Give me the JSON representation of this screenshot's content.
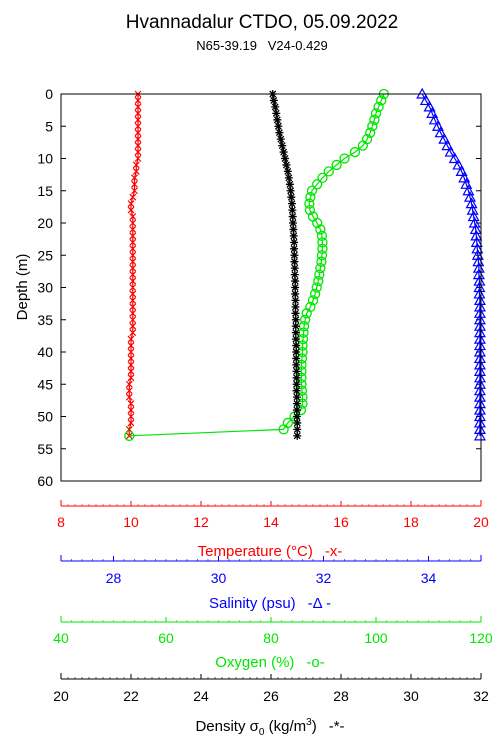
{
  "title": "Hvannadalur CTDO, 05.09.2022",
  "subtitle": "N65-39.19   V24-0.429",
  "chart_data": {
    "type": "scatter",
    "y": {
      "label": "Depth (m)",
      "ylim": [
        0,
        60
      ],
      "inverted": true,
      "ticks": [
        0,
        5,
        10,
        15,
        20,
        25,
        30,
        35,
        40,
        45,
        50,
        55,
        60
      ]
    },
    "depths": [
      0,
      1,
      2,
      3,
      4,
      5,
      6,
      7,
      8,
      9,
      10,
      11,
      12,
      13,
      14,
      15,
      16,
      17,
      18,
      19,
      20,
      21,
      22,
      23,
      24,
      25,
      26,
      27,
      28,
      29,
      30,
      31,
      32,
      33,
      34,
      35,
      36,
      37,
      38,
      39,
      40,
      41,
      42,
      43,
      44,
      45,
      46,
      47,
      48,
      49,
      50,
      51,
      52,
      53
    ],
    "axes": [
      {
        "key": "temperature",
        "label": "Temperature (°C)",
        "legend": "-x-",
        "color": "#ff0000",
        "xlim": [
          8,
          20
        ],
        "ticks": [
          8,
          10,
          12,
          14,
          16,
          18,
          20
        ],
        "tick_labels": [
          "8",
          "10",
          "12",
          "14",
          "16",
          "18",
          "20"
        ]
      },
      {
        "key": "salinity",
        "label": "Salinity (psu)",
        "legend": "-Δ -",
        "color": "#0000ff",
        "xlim": [
          27,
          35
        ],
        "ticks": [
          28,
          30,
          32,
          34
        ],
        "tick_labels": [
          "28",
          "30",
          "32",
          "34"
        ]
      },
      {
        "key": "oxygen",
        "label": "Oxygen (%)",
        "legend": "-o-",
        "color": "#00e600",
        "xlim": [
          40,
          120
        ],
        "ticks": [
          40,
          60,
          80,
          100,
          120
        ],
        "tick_labels": [
          "40",
          "60",
          "80",
          "100",
          "120"
        ]
      },
      {
        "key": "density",
        "label": "Density σ",
        "label_sub": "0",
        "label_units": " (kg/m",
        "label_sup": "3",
        "label_end": ")",
        "legend": "-*-",
        "color": "#000000",
        "xlim": [
          20,
          32
        ],
        "ticks": [
          20,
          22,
          24,
          26,
          28,
          30,
          32
        ],
        "tick_labels": [
          "20",
          "22",
          "24",
          "26",
          "28",
          "30",
          "32"
        ]
      }
    ],
    "series": [
      {
        "name": "Temperature",
        "axis": "temperature",
        "marker": "x",
        "color": "#ff0000",
        "depths": [
          0,
          1,
          2,
          3,
          4,
          5,
          6,
          7,
          8,
          9,
          10,
          11,
          12,
          13,
          14,
          15,
          16,
          17,
          18,
          19,
          20,
          21,
          22,
          23,
          24,
          25,
          26,
          27,
          28,
          29,
          30,
          31,
          32,
          33,
          34,
          35,
          36,
          37,
          38,
          39,
          40,
          41,
          42,
          43,
          44,
          45,
          46,
          47,
          48,
          49,
          50,
          51,
          52,
          53
        ],
        "values": [
          10.2,
          10.2,
          10.2,
          10.2,
          10.2,
          10.2,
          10.2,
          10.2,
          10.2,
          10.2,
          10.2,
          10.15,
          10.15,
          10.1,
          10.1,
          10.1,
          10.05,
          10.0,
          10.0,
          10.05,
          10.05,
          10.05,
          10.05,
          10.05,
          10.05,
          10.05,
          10.05,
          10.05,
          10.05,
          10.05,
          10.05,
          10.05,
          10.05,
          10.05,
          10.05,
          10.05,
          10.05,
          10.05,
          10.0,
          10.0,
          10.0,
          10.0,
          10.0,
          10.0,
          10.0,
          9.95,
          9.95,
          9.95,
          10.0,
          10.0,
          10.0,
          10.0,
          9.95,
          9.95
        ]
      },
      {
        "name": "Salinity",
        "axis": "salinity",
        "marker": "triangle",
        "color": "#0000ff",
        "depths": [
          0,
          1,
          2,
          3,
          4,
          5,
          6,
          7,
          8,
          9,
          10,
          11,
          12,
          13,
          14,
          15,
          16,
          17,
          18,
          19,
          20,
          21,
          22,
          23,
          24,
          25,
          26,
          27,
          28,
          29,
          30,
          31,
          32,
          33,
          34,
          35,
          36,
          37,
          38,
          39,
          40,
          41,
          42,
          43,
          44,
          45,
          46,
          47,
          48,
          49,
          50,
          51,
          52,
          53
        ],
        "values": [
          33.88,
          33.95,
          34.02,
          34.07,
          34.12,
          34.18,
          34.23,
          34.3,
          34.36,
          34.42,
          34.5,
          34.57,
          34.63,
          34.68,
          34.72,
          34.76,
          34.79,
          34.82,
          34.84,
          34.86,
          34.88,
          34.9,
          34.91,
          34.92,
          34.93,
          34.94,
          34.95,
          34.96,
          34.96,
          34.97,
          34.97,
          34.97,
          34.98,
          34.98,
          34.98,
          34.98,
          34.98,
          34.98,
          34.98,
          34.98,
          34.98,
          34.98,
          34.98,
          34.98,
          34.98,
          34.98,
          34.98,
          34.98,
          34.98,
          34.98,
          34.98,
          34.98,
          34.98,
          34.98
        ]
      },
      {
        "name": "Oxygen",
        "axis": "oxygen",
        "marker": "circle",
        "color": "#00e600",
        "depths": [
          0,
          1,
          2,
          3,
          4,
          5,
          6,
          7,
          8,
          9,
          10,
          11,
          12,
          13,
          14,
          15,
          16,
          17,
          18,
          19,
          20,
          21,
          22,
          23,
          24,
          25,
          26,
          27,
          28,
          29,
          30,
          31,
          32,
          33,
          34,
          35,
          36,
          37,
          38,
          39,
          40,
          41,
          42,
          43,
          44,
          45,
          46,
          47,
          48,
          49,
          50,
          51,
          52,
          53
        ],
        "values": [
          101.5,
          101.0,
          100.5,
          100.0,
          99.7,
          99.3,
          98.9,
          98.3,
          97.5,
          96.0,
          94.0,
          92.5,
          91.0,
          89.8,
          88.8,
          87.8,
          87.5,
          87.3,
          87.4,
          88.0,
          88.8,
          89.4,
          89.7,
          89.8,
          89.8,
          89.7,
          89.6,
          89.4,
          89.2,
          89.0,
          88.7,
          88.4,
          88.0,
          87.5,
          86.8,
          86.5,
          86.3,
          86.2,
          86.1,
          86.0,
          86.0,
          85.9,
          85.8,
          85.8,
          85.8,
          85.8,
          85.9,
          86.0,
          86.0,
          85.7,
          84.5,
          83.2,
          82.4,
          53.0
        ]
      },
      {
        "name": "Density",
        "axis": "density",
        "marker": "star",
        "color": "#000000",
        "depths": [
          0,
          1,
          2,
          3,
          4,
          5,
          6,
          7,
          8,
          9,
          10,
          11,
          12,
          13,
          14,
          15,
          16,
          17,
          18,
          19,
          20,
          21,
          22,
          23,
          24,
          25,
          26,
          27,
          28,
          29,
          30,
          31,
          32,
          33,
          34,
          35,
          36,
          37,
          38,
          39,
          40,
          41,
          42,
          43,
          44,
          45,
          46,
          47,
          48,
          49,
          50,
          51,
          52,
          53
        ],
        "values": [
          26.05,
          26.08,
          26.12,
          26.15,
          26.18,
          26.21,
          26.24,
          26.28,
          26.32,
          26.36,
          26.4,
          26.44,
          26.48,
          26.51,
          26.54,
          26.56,
          26.58,
          26.6,
          26.61,
          26.62,
          26.63,
          26.64,
          26.65,
          26.66,
          26.66,
          26.67,
          26.67,
          26.68,
          26.68,
          26.69,
          26.69,
          26.69,
          26.7,
          26.7,
          26.7,
          26.71,
          26.71,
          26.71,
          26.71,
          26.72,
          26.72,
          26.72,
          26.72,
          26.73,
          26.73,
          26.73,
          26.73,
          26.74,
          26.74,
          26.74,
          26.74,
          26.75,
          26.75,
          26.75
        ]
      }
    ]
  }
}
